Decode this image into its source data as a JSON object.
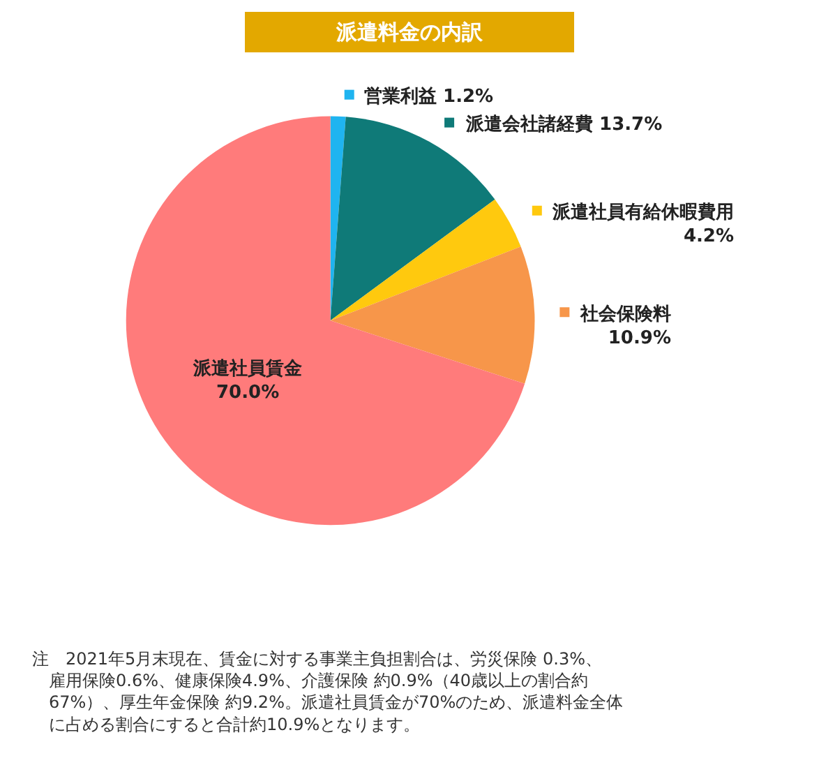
{
  "chart_data": {
    "type": "pie",
    "title": "派遣料金の内訳",
    "categories": [
      "営業利益",
      "派遣会社諸経費",
      "派遣社員有給休暇費用",
      "社会保険料",
      "派遣社員賃金"
    ],
    "values": [
      1.2,
      13.7,
      4.2,
      10.9,
      70.0
    ],
    "value_labels": [
      "1.2%",
      "13.7%",
      "4.2%",
      "10.9%",
      "70.0%"
    ],
    "colors": [
      "#1fb4f0",
      "#0f7a78",
      "#ffc90e",
      "#f7964a",
      "#ff7b7b"
    ],
    "annotations": [
      "注　2021年5月末現在、賃金に対する事業主負担割合は、労災保険 0.3%、雇用保険0.6%、健康保険4.9%、介護保険 約0.9%（40歳以上の割合約67%）、厚生年金保険 約9.2%。派遣社員賃金が70%のため、派遣料金全体に占める割合にすると合計約10.9%となります。"
    ],
    "legend": "right"
  }
}
